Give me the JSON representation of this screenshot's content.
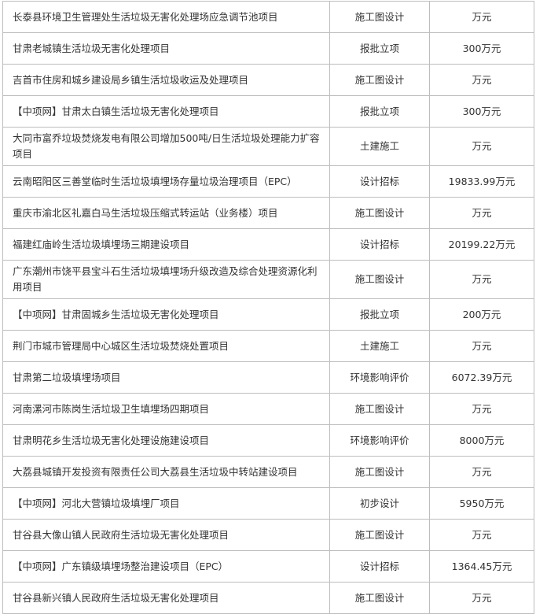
{
  "rows": [
    {
      "name": "长泰县环境卫生管理处生活垃圾无害化处理场应急调节池项目",
      "stage": "施工图设计",
      "amount": "万元"
    },
    {
      "name": "甘肃老城镇生活垃圾无害化处理项目",
      "stage": "报批立项",
      "amount": "300万元"
    },
    {
      "name": "吉首市住房和城乡建设局乡镇生活垃圾收运及处理项目",
      "stage": "施工图设计",
      "amount": "万元"
    },
    {
      "name": "【中项网】甘肃太白镇生活垃圾无害化处理项目",
      "stage": "报批立项",
      "amount": "300万元"
    },
    {
      "name": "大同市富乔垃圾焚烧发电有限公司增加500吨/日生活垃圾处理能力扩容项目",
      "stage": "土建施工",
      "amount": "万元"
    },
    {
      "name": "云南昭阳区三善堂临时生活垃圾填埋场存量垃圾治理项目（EPC）",
      "stage": "设计招标",
      "amount": "19833.99万元"
    },
    {
      "name": "重庆市渝北区礼嘉白马生活垃圾压缩式转运站（业务楼）项目",
      "stage": "施工图设计",
      "amount": "万元"
    },
    {
      "name": "福建红庙岭生活垃圾填埋场三期建设项目",
      "stage": "设计招标",
      "amount": "20199.22万元"
    },
    {
      "name": "广东潮州市饶平县宝斗石生活垃圾填埋场升级改造及综合处理资源化利用项目",
      "stage": "施工图设计",
      "amount": "万元"
    },
    {
      "name": "【中项网】甘肃固城乡生活垃圾无害化处理项目",
      "stage": "报批立项",
      "amount": "200万元"
    },
    {
      "name": "荆门市城市管理局中心城区生活垃圾焚烧处置项目",
      "stage": "土建施工",
      "amount": "万元"
    },
    {
      "name": "甘肃第二垃圾填埋场项目",
      "stage": "环境影响评价",
      "amount": "6072.39万元"
    },
    {
      "name": "河南漯河市陈岗生活垃圾卫生填埋场四期项目",
      "stage": "施工图设计",
      "amount": "万元"
    },
    {
      "name": "甘肃明花乡生活垃圾无害化处理设施建设项目",
      "stage": "环境影响评价",
      "amount": "8000万元"
    },
    {
      "name": "大荔县城镇开发投资有限责任公司大荔县生活垃圾中转站建设项目",
      "stage": "施工图设计",
      "amount": "万元"
    },
    {
      "name": "【中项网】河北大营镇垃圾填埋厂项目",
      "stage": "初步设计",
      "amount": "5950万元"
    },
    {
      "name": "甘谷县大像山镇人民政府生活垃圾无害化处理项目",
      "stage": "施工图设计",
      "amount": "万元"
    },
    {
      "name": "【中项网】广东镇级填埋场整治建设项目（EPC）",
      "stage": "设计招标",
      "amount": "1364.45万元"
    },
    {
      "name": "甘谷县新兴镇人民政府生活垃圾无害化处理项目",
      "stage": "施工图设计",
      "amount": "万元"
    }
  ]
}
